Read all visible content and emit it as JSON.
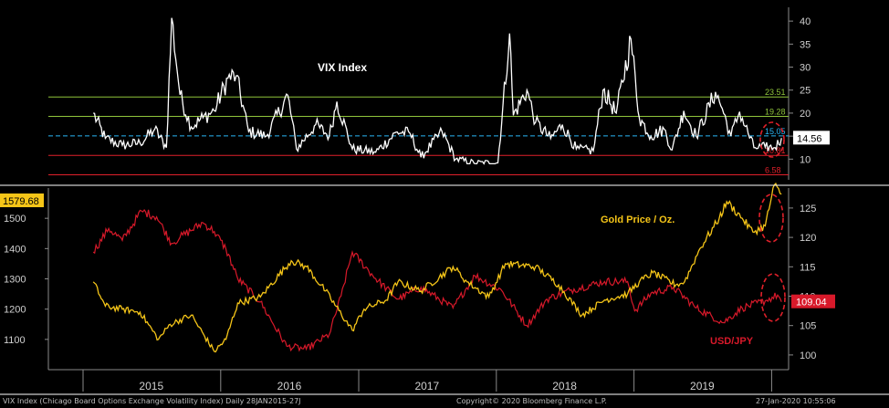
{
  "chart_data": [
    {
      "type": "line",
      "title": "VIX Index",
      "xlim": [
        "2014-10-01",
        "2020-02-15"
      ],
      "ylim": [
        5.5,
        43
      ],
      "y_ticks": [
        10,
        15,
        20,
        25,
        30,
        35,
        40
      ],
      "series": [
        {
          "name": "VIX Index",
          "color": "#ffffff",
          "x": [
            "2015-01-28",
            "2015-03-01",
            "2015-04-15",
            "2015-06-01",
            "2015-07-10",
            "2015-08-10",
            "2015-08-24",
            "2015-09-15",
            "2015-10-15",
            "2015-11-15",
            "2015-12-15",
            "2016-01-20",
            "2016-02-11",
            "2016-03-15",
            "2016-05-01",
            "2016-06-27",
            "2016-07-20",
            "2016-09-09",
            "2016-10-15",
            "2016-11-04",
            "2016-12-15",
            "2017-02-15",
            "2017-04-13",
            "2017-05-17",
            "2017-06-15",
            "2017-08-10",
            "2017-09-15",
            "2017-11-03",
            "2018-01-05",
            "2018-02-05",
            "2018-02-15",
            "2018-03-23",
            "2018-04-15",
            "2018-05-25",
            "2018-06-25",
            "2018-08-01",
            "2018-09-15",
            "2018-10-11",
            "2018-11-15",
            "2018-12-24",
            "2019-01-15",
            "2019-02-15",
            "2019-03-22",
            "2019-04-12",
            "2019-05-13",
            "2019-06-15",
            "2019-08-05",
            "2019-08-23",
            "2019-09-15",
            "2019-10-08",
            "2019-11-15",
            "2019-12-15",
            "2020-01-10",
            "2020-01-27"
          ],
          "y": [
            20.0,
            14.5,
            13.0,
            13.5,
            16.5,
            12.5,
            40.7,
            24.0,
            17.0,
            19.0,
            20.5,
            27.6,
            28.1,
            16.0,
            15.0,
            23.9,
            12.2,
            17.5,
            15.0,
            22.5,
            12.2,
            11.5,
            15.9,
            15.6,
            10.4,
            16.0,
            10.0,
            9.1,
            9.2,
            37.3,
            19.5,
            25.0,
            18.0,
            14.5,
            17.5,
            12.2,
            11.8,
            25.0,
            20.0,
            36.1,
            19.0,
            15.0,
            16.5,
            12.0,
            20.5,
            15.0,
            24.6,
            21.0,
            15.0,
            20.3,
            12.5,
            12.6,
            12.5,
            14.56
          ]
        }
      ],
      "reference_lines": [
        {
          "value": 23.51,
          "label": "23.51",
          "color": "#8fc43b"
        },
        {
          "value": 19.28,
          "label": "19.28",
          "color": "#8fc43b"
        },
        {
          "value": 15.05,
          "label": "15.05",
          "color": "#29b6f6"
        },
        {
          "value": 10.81,
          "label": "10.81",
          "color": "#e0202a"
        },
        {
          "value": 6.58,
          "label": "6.58",
          "color": "#e0202a"
        }
      ],
      "last_value_label": "14.56"
    },
    {
      "type": "line",
      "x_tick_labels": [
        "2015",
        "2016",
        "2017",
        "2018",
        "2019"
      ],
      "xlim": [
        "2014-10-01",
        "2020-02-15"
      ],
      "y_left": {
        "ylim": [
          1000,
          1600
        ],
        "ticks": [
          1100,
          1200,
          1300,
          1400,
          1500
        ]
      },
      "y_right": {
        "ylim": [
          97.5,
          128.4
        ],
        "ticks": [
          100,
          105,
          110,
          115,
          120,
          125
        ]
      },
      "series": [
        {
          "name": "Gold Price / Oz.",
          "axis": "left",
          "color": "#f5c518",
          "x": [
            "2015-01-28",
            "2015-03-01",
            "2015-04-15",
            "2015-06-01",
            "2015-07-20",
            "2015-08-20",
            "2015-10-15",
            "2015-12-15",
            "2016-01-15",
            "2016-02-15",
            "2016-04-15",
            "2016-07-06",
            "2016-08-15",
            "2016-10-05",
            "2016-12-15",
            "2017-01-15",
            "2017-03-15",
            "2017-04-15",
            "2017-06-15",
            "2017-09-08",
            "2017-10-15",
            "2017-12-12",
            "2018-01-25",
            "2018-04-15",
            "2018-06-15",
            "2018-08-16",
            "2018-10-15",
            "2018-12-15",
            "2019-01-15",
            "2019-02-20",
            "2019-04-22",
            "2019-05-15",
            "2019-06-25",
            "2019-08-15",
            "2019-09-04",
            "2019-10-15",
            "2019-11-12",
            "2019-12-15",
            "2020-01-08",
            "2020-01-27"
          ],
          "y": [
            1290,
            1210,
            1200,
            1190,
            1100,
            1150,
            1180,
            1060,
            1100,
            1220,
            1240,
            1360,
            1340,
            1260,
            1130,
            1200,
            1230,
            1290,
            1260,
            1340,
            1290,
            1240,
            1350,
            1340,
            1280,
            1180,
            1230,
            1250,
            1290,
            1320,
            1280,
            1290,
            1400,
            1500,
            1555,
            1500,
            1455,
            1475,
            1610,
            1579.68
          ]
        },
        {
          "name": "USD/JPY",
          "axis": "right",
          "color": "#d8192a",
          "x": [
            "2015-01-28",
            "2015-03-10",
            "2015-04-15",
            "2015-06-05",
            "2015-07-15",
            "2015-08-24",
            "2015-09-15",
            "2015-11-15",
            "2015-12-15",
            "2016-01-15",
            "2016-02-15",
            "2016-04-15",
            "2016-06-24",
            "2016-08-15",
            "2016-10-15",
            "2016-11-15",
            "2016-12-15",
            "2017-02-15",
            "2017-04-15",
            "2017-06-15",
            "2017-09-08",
            "2017-11-05",
            "2018-01-15",
            "2018-03-23",
            "2018-05-15",
            "2018-07-15",
            "2018-10-15",
            "2018-12-15",
            "2019-01-03",
            "2019-02-15",
            "2019-04-15",
            "2019-06-15",
            "2019-08-26",
            "2019-10-15",
            "2019-12-15",
            "2020-01-17",
            "2020-01-27"
          ],
          "y": [
            117.5,
            121.5,
            119.5,
            124.5,
            123.5,
            119.0,
            120.0,
            122.5,
            121.0,
            118.0,
            113.0,
            109.0,
            101.5,
            101.0,
            103.5,
            110.0,
            117.5,
            113.0,
            109.5,
            111.5,
            108.0,
            113.5,
            111.0,
            105.0,
            109.5,
            111.0,
            112.5,
            112.5,
            107.5,
            110.5,
            111.5,
            108.0,
            105.5,
            108.0,
            109.2,
            110.2,
            109.04
          ]
        }
      ],
      "last_value_labels": {
        "gold": "1579.68",
        "usdjpy": "109.04"
      }
    }
  ],
  "labels": {
    "vix_title": "VIX Index",
    "gold_name": "Gold Price / Oz.",
    "usdjpy_name": "USD/JPY"
  },
  "footer": {
    "left": "VIX Index (Chicago Board Options Exchange Volatility Index)  Daily 28JAN2015-27J",
    "center": "Copyright© 2020 Bloomberg Finance L.P.",
    "right": "27-Jan-2020 10:55:06"
  },
  "colors": {
    "background": "#000000",
    "axis": "#8a8a8a",
    "vix_line": "#ffffff",
    "gold": "#f5c518",
    "usdjpy": "#d8192a",
    "highlight_circle": "#e0202a"
  }
}
